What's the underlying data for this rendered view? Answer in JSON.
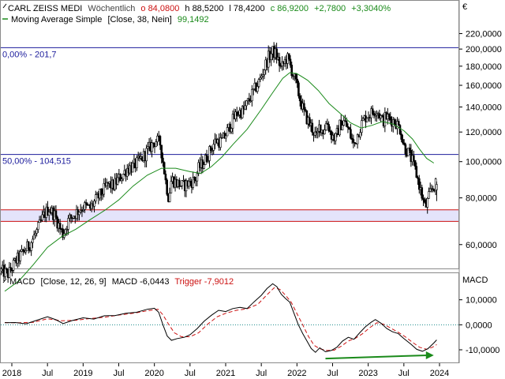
{
  "header": {
    "instrument": "CARL ZEISS MEDI",
    "interval": "Wöchentlich",
    "open_label": "o 84,0800",
    "high_label": "h 88,5200",
    "low_label": "l 78,4200",
    "close_label": "c 86,9200",
    "change_label": "+2,7800",
    "change_pct_label": "+3,3040%",
    "ma_label": "Moving Average Simple",
    "ma_params": "[Close, 38, Nein]",
    "ma_value": "99,1492",
    "currency_label": "€"
  },
  "macd_header": {
    "label": "MACD",
    "params": "[Close, 12, 26, 9]",
    "macd_value_label": "MACD -6,0443",
    "trigger_label": "Trigger -7,9012",
    "axis_title": "MACD"
  },
  "colors": {
    "candle": "#000000",
    "ma_line": "#1a8a1a",
    "fib_line": "#1c1c9c",
    "support_band_edge": "#cc1111",
    "support_band_fill": "#e4e4fb",
    "macd_line": "#000000",
    "trigger_line": "#cc1111",
    "zero_line": "#1a8a8a",
    "divergence_arrow": "#1a8a1a",
    "header_red": "#cc1111",
    "header_green": "#1a8a1a"
  },
  "chart_data": [
    {
      "type": "candlestick",
      "title": "CARL ZEISS MEDI",
      "scale": "log",
      "ylim": [
        47,
        226
      ],
      "y_ticks": [
        "60,0000",
        "80,0000",
        "100,0000",
        "120,0000",
        "140,0000",
        "160,0000",
        "180,0000",
        "200,0000",
        "220,0000"
      ],
      "y_tick_values": [
        60,
        80,
        100,
        120,
        140,
        160,
        180,
        200,
        220
      ],
      "x_ticks": [
        "2018",
        "Jul",
        "2019",
        "Jul",
        "2020",
        "Jul",
        "2021",
        "Jul",
        "2022",
        "Jul",
        "2023",
        "Jul",
        "2024"
      ],
      "x_tick_values": [
        2018.0,
        2018.5,
        2019.0,
        2019.5,
        2020.0,
        2020.5,
        2021.0,
        2021.5,
        2022.0,
        2022.5,
        2023.0,
        2023.5,
        2024.0
      ],
      "grid": false,
      "close_path": [
        [
          2017.85,
          51
        ],
        [
          2017.95,
          50
        ],
        [
          2018.05,
          54
        ],
        [
          2018.15,
          57
        ],
        [
          2018.25,
          60
        ],
        [
          2018.35,
          65
        ],
        [
          2018.45,
          72
        ],
        [
          2018.52,
          75
        ],
        [
          2018.6,
          72
        ],
        [
          2018.68,
          66
        ],
        [
          2018.72,
          64
        ],
        [
          2018.8,
          70
        ],
        [
          2018.9,
          73
        ],
        [
          2019.0,
          76
        ],
        [
          2019.1,
          75
        ],
        [
          2019.18,
          79
        ],
        [
          2019.25,
          82
        ],
        [
          2019.35,
          87
        ],
        [
          2019.42,
          86
        ],
        [
          2019.5,
          90
        ],
        [
          2019.55,
          92
        ],
        [
          2019.62,
          96
        ],
        [
          2019.7,
          97
        ],
        [
          2019.78,
          100
        ],
        [
          2019.86,
          104
        ],
        [
          2019.95,
          110
        ],
        [
          2020.02,
          114
        ],
        [
          2020.08,
          112
        ],
        [
          2020.12,
          100
        ],
        [
          2020.16,
          88
        ],
        [
          2020.2,
          80
        ],
        [
          2020.24,
          90
        ],
        [
          2020.3,
          88
        ],
        [
          2020.4,
          86
        ],
        [
          2020.5,
          88
        ],
        [
          2020.58,
          90
        ],
        [
          2020.62,
          96
        ],
        [
          2020.7,
          100
        ],
        [
          2020.78,
          107
        ],
        [
          2020.86,
          114
        ],
        [
          2020.94,
          113
        ],
        [
          2021.0,
          118
        ],
        [
          2021.08,
          127
        ],
        [
          2021.16,
          135
        ],
        [
          2021.25,
          137
        ],
        [
          2021.32,
          145
        ],
        [
          2021.4,
          155
        ],
        [
          2021.48,
          165
        ],
        [
          2021.55,
          180
        ],
        [
          2021.6,
          190
        ],
        [
          2021.66,
          197
        ],
        [
          2021.7,
          194
        ],
        [
          2021.74,
          186
        ],
        [
          2021.78,
          177
        ],
        [
          2021.82,
          184
        ],
        [
          2021.86,
          190
        ],
        [
          2021.9,
          182
        ],
        [
          2021.95,
          170
        ],
        [
          2022.0,
          158
        ],
        [
          2022.05,
          145
        ],
        [
          2022.1,
          135
        ],
        [
          2022.16,
          128
        ],
        [
          2022.22,
          122
        ],
        [
          2022.28,
          115
        ],
        [
          2022.32,
          126
        ],
        [
          2022.36,
          120
        ],
        [
          2022.42,
          128
        ],
        [
          2022.48,
          118
        ],
        [
          2022.54,
          115
        ],
        [
          2022.6,
          125
        ],
        [
          2022.66,
          128
        ],
        [
          2022.72,
          122
        ],
        [
          2022.8,
          110
        ],
        [
          2022.86,
          120
        ],
        [
          2022.92,
          128
        ],
        [
          2022.98,
          133
        ],
        [
          2023.05,
          135
        ],
        [
          2023.1,
          138
        ],
        [
          2023.15,
          135
        ],
        [
          2023.2,
          128
        ],
        [
          2023.25,
          132
        ],
        [
          2023.3,
          130
        ],
        [
          2023.38,
          128
        ],
        [
          2023.45,
          122
        ],
        [
          2023.5,
          110
        ],
        [
          2023.56,
          106
        ],
        [
          2023.62,
          100
        ],
        [
          2023.68,
          92
        ],
        [
          2023.72,
          86
        ],
        [
          2023.76,
          80
        ],
        [
          2023.8,
          75
        ],
        [
          2023.84,
          79
        ],
        [
          2023.88,
          84
        ],
        [
          2023.92,
          86
        ],
        [
          2023.96,
          87
        ]
      ],
      "last_candle": {
        "open": 84.08,
        "high": 88.52,
        "low": 78.42,
        "close": 86.92
      },
      "series": [
        {
          "name": "Moving Average Simple",
          "type": "line",
          "points": [
            [
              2017.9,
              45
            ],
            [
              2018.1,
              48
            ],
            [
              2018.3,
              53
            ],
            [
              2018.5,
              59
            ],
            [
              2018.7,
              63
            ],
            [
              2018.9,
              66
            ],
            [
              2019.1,
              70
            ],
            [
              2019.3,
              74
            ],
            [
              2019.5,
              79
            ],
            [
              2019.7,
              86
            ],
            [
              2019.9,
              92
            ],
            [
              2020.1,
              96
            ],
            [
              2020.3,
              96
            ],
            [
              2020.5,
              94
            ],
            [
              2020.65,
              93
            ],
            [
              2020.8,
              97
            ],
            [
              2020.95,
              103
            ],
            [
              2021.1,
              111
            ],
            [
              2021.3,
              122
            ],
            [
              2021.5,
              138
            ],
            [
              2021.65,
              152
            ],
            [
              2021.8,
              167
            ],
            [
              2021.9,
              173
            ],
            [
              2022.0,
              172
            ],
            [
              2022.15,
              165
            ],
            [
              2022.3,
              155
            ],
            [
              2022.45,
              143
            ],
            [
              2022.6,
              135
            ],
            [
              2022.75,
              127
            ],
            [
              2022.9,
              123
            ],
            [
              2023.05,
              125
            ],
            [
              2023.2,
              128
            ],
            [
              2023.35,
              126
            ],
            [
              2023.5,
              121
            ],
            [
              2023.62,
              115
            ],
            [
              2023.72,
              108
            ],
            [
              2023.82,
              102
            ],
            [
              2023.92,
              99.15
            ]
          ]
        }
      ],
      "horizontal_lines": [
        {
          "label": "0,00% - 201,7",
          "value": 201.7
        },
        {
          "label": "50,00% - 104,515",
          "value": 104.515
        }
      ],
      "band": {
        "low": 69.2,
        "high": 74.3
      }
    },
    {
      "type": "line",
      "title": "MACD",
      "ylim": [
        -16,
        20
      ],
      "y_ticks": [
        "-10,0000",
        "0,0000",
        "10,0000"
      ],
      "y_tick_values": [
        -10,
        0,
        10
      ],
      "series": [
        {
          "name": "MACD",
          "points": [
            [
              2017.9,
              0.8
            ],
            [
              2018.05,
              0.9
            ],
            [
              2018.2,
              0.4
            ],
            [
              2018.35,
              1.8
            ],
            [
              2018.5,
              3.2
            ],
            [
              2018.62,
              2.0
            ],
            [
              2018.72,
              0.5
            ],
            [
              2018.85,
              1.7
            ],
            [
              2019.0,
              2.8
            ],
            [
              2019.15,
              2.3
            ],
            [
              2019.3,
              3.6
            ],
            [
              2019.45,
              3.7
            ],
            [
              2019.6,
              4.6
            ],
            [
              2019.75,
              5.0
            ],
            [
              2019.9,
              6.2
            ],
            [
              2020.0,
              6.6
            ],
            [
              2020.06,
              5.0
            ],
            [
              2020.12,
              0.0
            ],
            [
              2020.18,
              -4.5
            ],
            [
              2020.24,
              -6.2
            ],
            [
              2020.32,
              -5.5
            ],
            [
              2020.42,
              -5.0
            ],
            [
              2020.5,
              -4.0
            ],
            [
              2020.6,
              -1.5
            ],
            [
              2020.7,
              1.5
            ],
            [
              2020.8,
              3.8
            ],
            [
              2020.9,
              5.8
            ],
            [
              2021.0,
              5.3
            ],
            [
              2021.1,
              6.5
            ],
            [
              2021.2,
              7.0
            ],
            [
              2021.3,
              6.5
            ],
            [
              2021.4,
              9.2
            ],
            [
              2021.5,
              11.8
            ],
            [
              2021.58,
              14.5
            ],
            [
              2021.66,
              16.4
            ],
            [
              2021.72,
              15.2
            ],
            [
              2021.78,
              12.2
            ],
            [
              2021.84,
              10.5
            ],
            [
              2021.9,
              9.0
            ],
            [
              2021.96,
              4.5
            ],
            [
              2022.02,
              0.0
            ],
            [
              2022.08,
              -3.5
            ],
            [
              2022.14,
              -6.5
            ],
            [
              2022.2,
              -9.5
            ],
            [
              2022.26,
              -11.0
            ],
            [
              2022.32,
              -9.2
            ],
            [
              2022.4,
              -10.8
            ],
            [
              2022.48,
              -10.3
            ],
            [
              2022.56,
              -9.0
            ],
            [
              2022.64,
              -6.5
            ],
            [
              2022.72,
              -5.0
            ],
            [
              2022.8,
              -5.8
            ],
            [
              2022.88,
              -3.2
            ],
            [
              2022.96,
              -0.8
            ],
            [
              2023.04,
              1.0
            ],
            [
              2023.1,
              2.1
            ],
            [
              2023.18,
              0.6
            ],
            [
              2023.26,
              -1.5
            ],
            [
              2023.34,
              -2.8
            ],
            [
              2023.42,
              -3.5
            ],
            [
              2023.5,
              -5.5
            ],
            [
              2023.6,
              -7.8
            ],
            [
              2023.68,
              -9.8
            ],
            [
              2023.76,
              -10.6
            ],
            [
              2023.84,
              -9.5
            ],
            [
              2023.92,
              -7.3
            ],
            [
              2023.96,
              -6.04
            ]
          ]
        },
        {
          "name": "Trigger",
          "points": [
            [
              2017.9,
              0.9
            ],
            [
              2018.1,
              0.8
            ],
            [
              2018.3,
              1.0
            ],
            [
              2018.5,
              2.4
            ],
            [
              2018.7,
              1.6
            ],
            [
              2018.9,
              1.8
            ],
            [
              2019.1,
              2.5
            ],
            [
              2019.3,
              3.0
            ],
            [
              2019.5,
              3.9
            ],
            [
              2019.7,
              4.6
            ],
            [
              2019.9,
              5.6
            ],
            [
              2020.05,
              6.2
            ],
            [
              2020.12,
              4.0
            ],
            [
              2020.2,
              0.2
            ],
            [
              2020.28,
              -3.2
            ],
            [
              2020.38,
              -4.8
            ],
            [
              2020.5,
              -4.8
            ],
            [
              2020.62,
              -3.2
            ],
            [
              2020.75,
              0.3
            ],
            [
              2020.88,
              3.2
            ],
            [
              2021.0,
              4.6
            ],
            [
              2021.15,
              5.8
            ],
            [
              2021.3,
              6.4
            ],
            [
              2021.45,
              8.2
            ],
            [
              2021.58,
              12.0
            ],
            [
              2021.68,
              14.8
            ],
            [
              2021.76,
              14.2
            ],
            [
              2021.84,
              11.8
            ],
            [
              2021.92,
              9.0
            ],
            [
              2022.0,
              4.5
            ],
            [
              2022.08,
              0.0
            ],
            [
              2022.16,
              -4.6
            ],
            [
              2022.24,
              -8.2
            ],
            [
              2022.32,
              -9.6
            ],
            [
              2022.42,
              -10.3
            ],
            [
              2022.52,
              -10.2
            ],
            [
              2022.62,
              -8.6
            ],
            [
              2022.72,
              -6.5
            ],
            [
              2022.82,
              -5.4
            ],
            [
              2022.92,
              -3.6
            ],
            [
              2023.02,
              -1.2
            ],
            [
              2023.12,
              0.8
            ],
            [
              2023.22,
              0.2
            ],
            [
              2023.32,
              -1.4
            ],
            [
              2023.42,
              -3.0
            ],
            [
              2023.52,
              -4.8
            ],
            [
              2023.62,
              -7.0
            ],
            [
              2023.72,
              -9.0
            ],
            [
              2023.82,
              -9.8
            ],
            [
              2023.9,
              -9.0
            ],
            [
              2023.96,
              -7.9
            ]
          ]
        }
      ],
      "arrow": {
        "from": [
          2022.4,
          -13.5
        ],
        "to": [
          2023.92,
          -12.2
        ]
      }
    }
  ]
}
